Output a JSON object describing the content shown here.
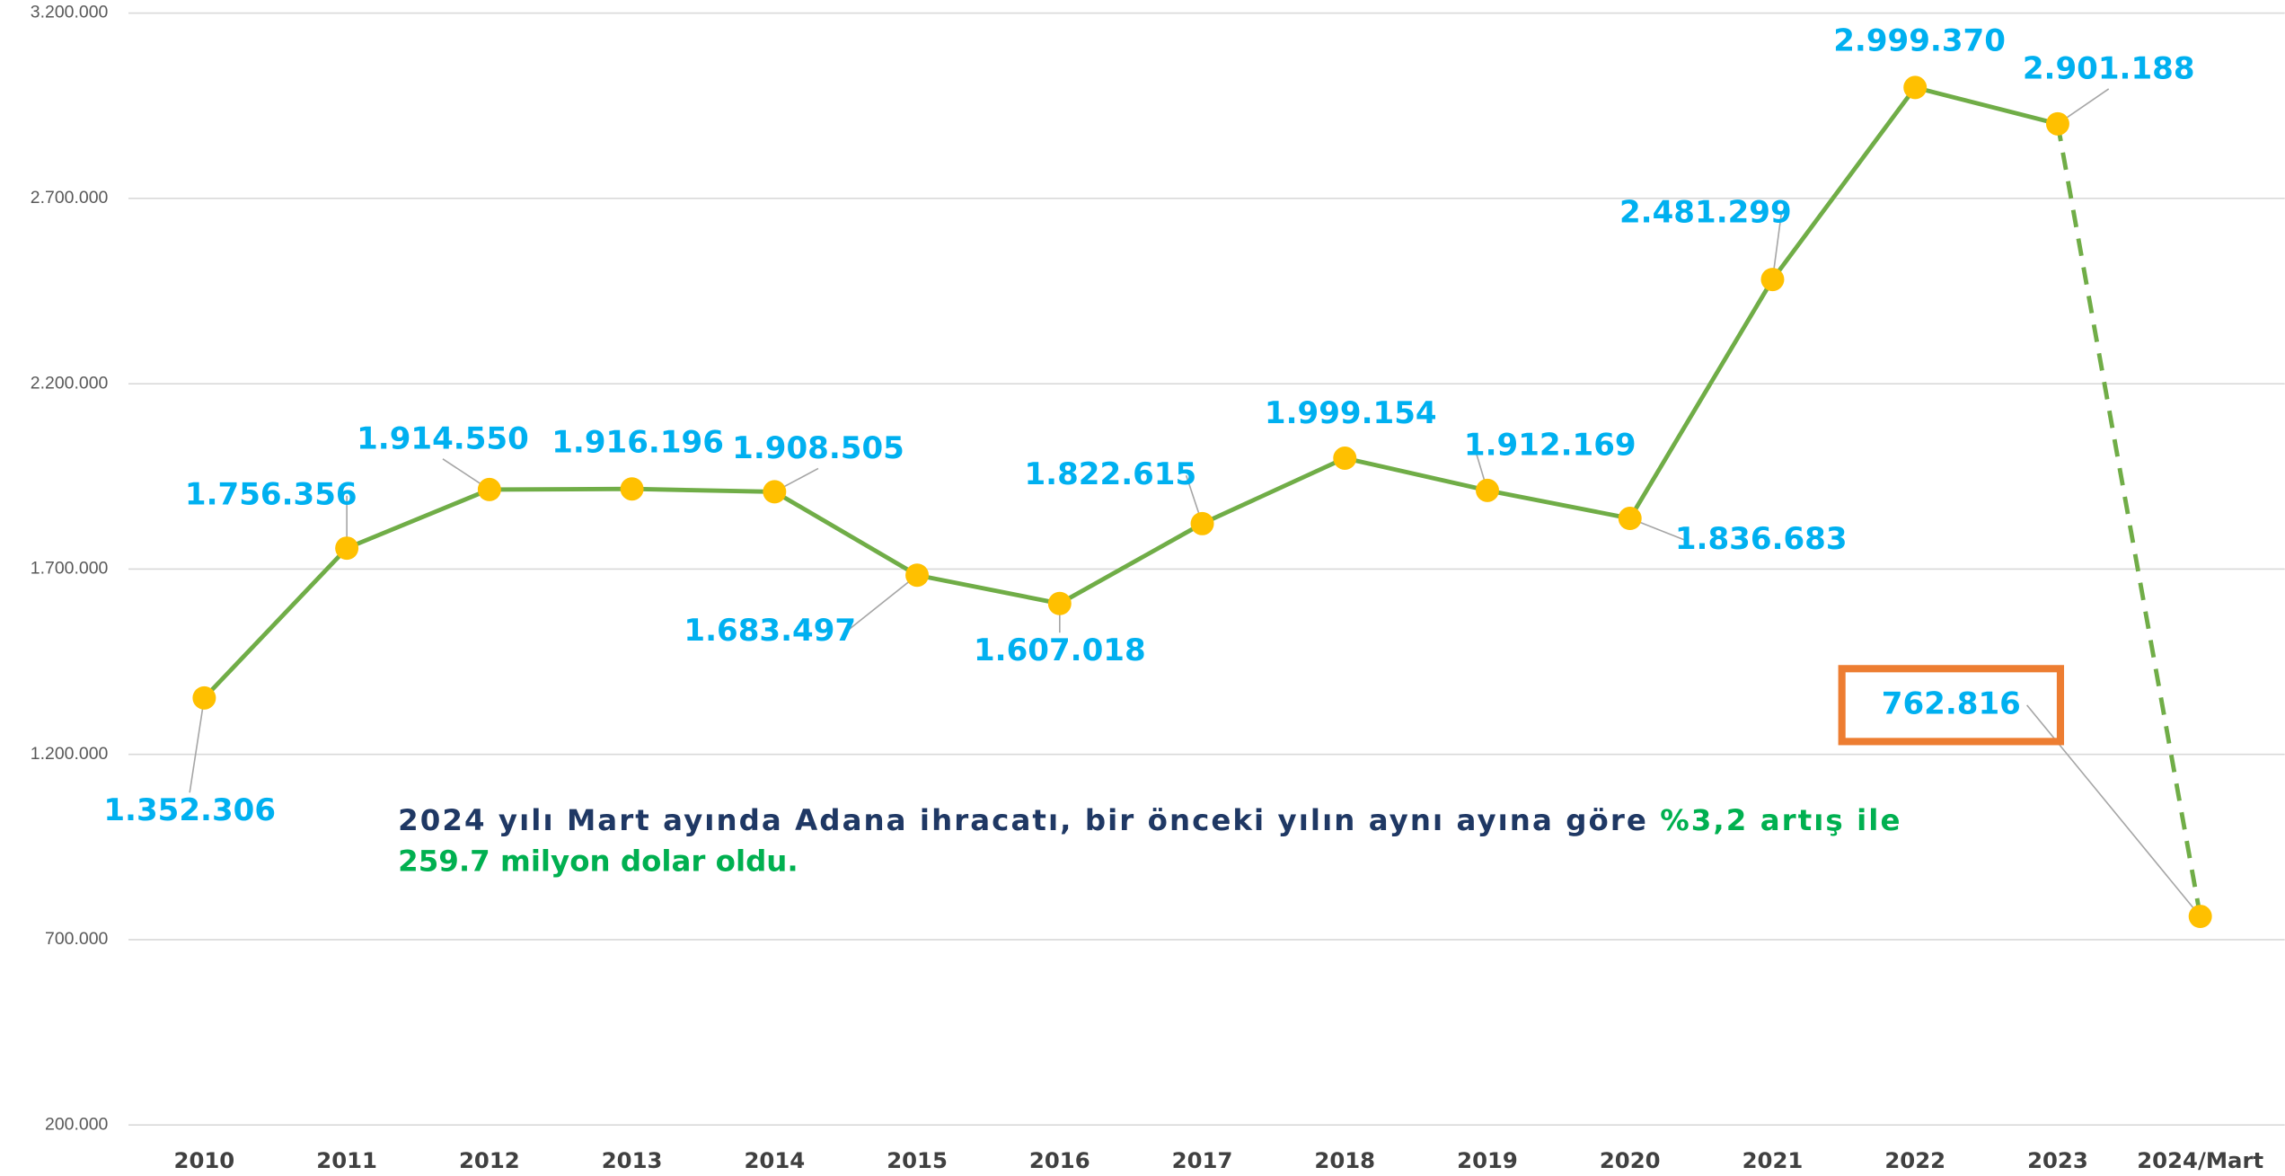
{
  "chart_data": {
    "type": "line",
    "categories": [
      "2010",
      "2011",
      "2012",
      "2013",
      "2014",
      "2015",
      "2016",
      "2017",
      "2018",
      "2019",
      "2020",
      "2021",
      "2022",
      "2023",
      "2024/Mart"
    ],
    "series": [
      {
        "color": "#70ad47",
        "values": [
          1352306,
          1756356,
          1914550,
          1916196,
          1908505,
          1683497,
          1607018,
          1822615,
          1999154,
          1912169,
          1836683,
          2481299,
          2999370,
          2901188,
          762816
        ],
        "value_labels": [
          "1.352.306",
          "1.756.356",
          "1.914.550",
          "1.916.196",
          "1.908.505",
          "1.683.497",
          "1.607.018",
          "1.822.615",
          "1.999.154",
          "1.912.169",
          "1.836.683",
          "2.481.299",
          "2.999.370",
          "2.901.188",
          "762.816"
        ]
      }
    ],
    "ylim": [
      200000,
      3200000
    ],
    "yticks": [
      {
        "value": 200000,
        "label": "200.000"
      },
      {
        "value": 700000,
        "label": "700.000"
      },
      {
        "value": 1200000,
        "label": "1.200.000"
      },
      {
        "value": 1700000,
        "label": "1.700.000"
      },
      {
        "value": 2200000,
        "label": "2.200.000"
      },
      {
        "value": 2700000,
        "label": "2.700.000"
      },
      {
        "value": 3200000,
        "label": "3.200.000"
      }
    ],
    "grid": true,
    "annotation": [
      "2024 yılı Mart ayında Adana ihracatı, bir önceki yılın aynı ayına göre ",
      "%3,2 artış ile",
      "259.7 milyon dolar oldu."
    ]
  }
}
